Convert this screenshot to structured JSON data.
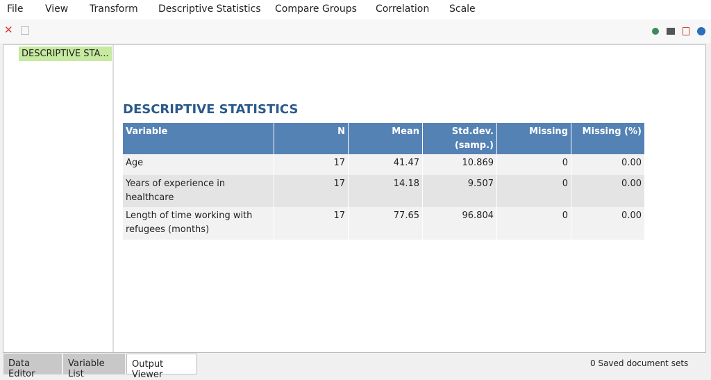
{
  "menu": [
    "File",
    "View",
    "Transform",
    "Descriptive Statistics",
    "Compare Groups",
    "Correlation",
    "Scale"
  ],
  "nav": {
    "items": [
      "DESCRIPTIVE STA..."
    ]
  },
  "output": {
    "title": "DESCRIPTIVE STATISTICS",
    "table": {
      "columns": [
        "Variable",
        "N",
        "Mean",
        "Std.dev. (samp.)",
        "Missing",
        "Missing (%)"
      ],
      "rows": [
        [
          "Age",
          "17",
          "41.47",
          "10.869",
          "0",
          "0.00"
        ],
        [
          "Years of experience in healthcare",
          "17",
          "14.18",
          "9.507",
          "0",
          "0.00"
        ],
        [
          "Length of time working with refugees (months)",
          "17",
          "77.65",
          "96.804",
          "0",
          "0.00"
        ]
      ]
    }
  },
  "tabs": [
    "Data Editor",
    "Variable List",
    "Output Viewer"
  ],
  "status": "0 Saved document sets"
}
